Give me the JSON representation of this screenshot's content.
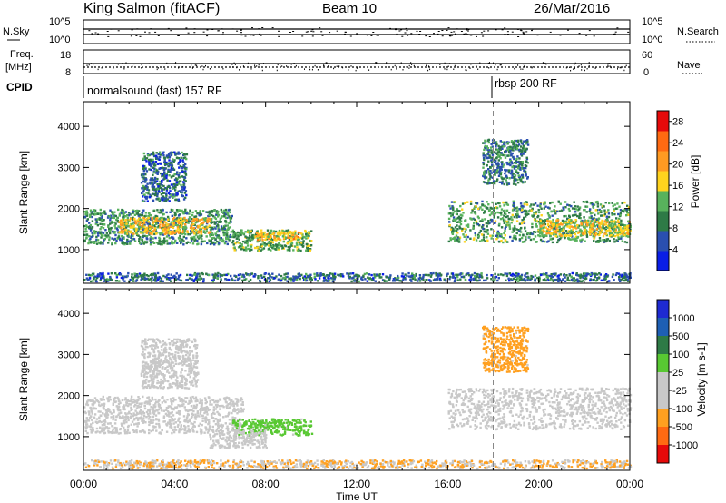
{
  "header": {
    "station": "King Salmon (fitACF)",
    "beam": "Beam 10",
    "date": "26/Mar/2016"
  },
  "noise_panel": {
    "left_label": "N.Sky",
    "right_label": "N.Search",
    "left_ticks": [
      "10^5",
      "10^0"
    ],
    "right_ticks": [
      "10^5",
      "10^0"
    ]
  },
  "freq_panel": {
    "left_label_line1": "Freq.",
    "left_label_line2": "[MHz]",
    "right_label": "Nave",
    "left_ticks": [
      "18",
      "8"
    ],
    "right_ticks": [
      "60",
      "0"
    ]
  },
  "cpid_panel": {
    "label": "CPID",
    "segments": [
      {
        "name": "normalsound (fast) 157 RF",
        "start_hour": 0
      },
      {
        "name": "rbsp 200 RF",
        "start_hour": 18
      }
    ]
  },
  "colors": {
    "power": [
      "#0a1ee6",
      "#2a4fb0",
      "#2e7a46",
      "#58b25c",
      "#ffd31e",
      "#ff9a22",
      "#ff6a12",
      "#e60a0a"
    ],
    "velocity": [
      "#e60a0a",
      "#ff6a12",
      "#ffa020",
      "#c8c8c8",
      "#c8c8c8",
      "#58c832",
      "#2e7a46",
      "#1e5fb4",
      "#1e2ad2"
    ]
  },
  "chart_data": [
    {
      "type": "heatmap",
      "ylabel": "Slant Range [km]",
      "xlabel": "Time UT",
      "colorbar_label": "Power [dB]",
      "colorbar_ticks": [
        "4",
        "8",
        "12",
        "16",
        "20",
        "24",
        "28"
      ],
      "colorbar_range": [
        0,
        30
      ],
      "x_ticks": [
        "00:00",
        "04:00",
        "08:00",
        "12:00",
        "16:00",
        "20:00",
        "00:00"
      ],
      "xlim": [
        0,
        24
      ],
      "y_ticks": [
        "1000",
        "2000",
        "3000",
        "4000"
      ],
      "ylim": [
        180,
        4600
      ],
      "grid": false,
      "regions": [
        {
          "t0": 0.0,
          "t1": 6.5,
          "r0": 1150,
          "r1": 2000,
          "value": 11
        },
        {
          "t0": 1.5,
          "t1": 5.5,
          "r0": 1400,
          "r1": 1800,
          "value": 19
        },
        {
          "t0": 2.5,
          "t1": 4.5,
          "r0": 2200,
          "r1": 3400,
          "value": 8
        },
        {
          "t0": 6.5,
          "t1": 10.0,
          "r0": 1000,
          "r1": 1500,
          "value": 13
        },
        {
          "t0": 7.5,
          "t1": 9.5,
          "r0": 1250,
          "r1": 1450,
          "value": 20
        },
        {
          "t0": 16.0,
          "t1": 24.0,
          "r0": 1200,
          "r1": 2200,
          "value": 12
        },
        {
          "t0": 20.0,
          "t1": 24.0,
          "r0": 1350,
          "r1": 1750,
          "value": 18
        },
        {
          "t0": 17.5,
          "t1": 19.5,
          "r0": 2600,
          "r1": 3700,
          "value": 9
        },
        {
          "t0": 0.0,
          "t1": 24.0,
          "r0": 250,
          "r1": 450,
          "value": 8
        }
      ]
    },
    {
      "type": "heatmap",
      "ylabel": "Slant Range [km]",
      "xlabel": "Time UT",
      "colorbar_label": "Velocity [m s-1]",
      "colorbar_ticks": [
        "1000",
        "500",
        "100",
        "25",
        "-25",
        "-100",
        "-500",
        "-1000"
      ],
      "x_ticks": [
        "00:00",
        "04:00",
        "08:00",
        "12:00",
        "16:00",
        "20:00",
        "00:00"
      ],
      "xlim": [
        0,
        24
      ],
      "y_ticks": [
        "1000",
        "2000",
        "3000",
        "4000"
      ],
      "ylim": [
        180,
        4600
      ],
      "grid": false,
      "regions": [
        {
          "t0": 0.0,
          "t1": 7.0,
          "r0": 1100,
          "r1": 2000,
          "value": 0
        },
        {
          "t0": 6.5,
          "t1": 10.0,
          "r0": 1050,
          "r1": 1450,
          "value": 150
        },
        {
          "t0": 5.5,
          "t1": 8.0,
          "r0": 750,
          "r1": 1200,
          "value": 0
        },
        {
          "t0": 16.0,
          "t1": 24.0,
          "r0": 1200,
          "r1": 2200,
          "value": 0
        },
        {
          "t0": 2.5,
          "t1": 5.0,
          "r0": 2200,
          "r1": 3400,
          "value": 0
        },
        {
          "t0": 17.5,
          "t1": 19.5,
          "r0": 2600,
          "r1": 3700,
          "value": -150
        },
        {
          "t0": 0.0,
          "t1": 24.0,
          "r0": 250,
          "r1": 450,
          "value": -50
        }
      ]
    }
  ]
}
